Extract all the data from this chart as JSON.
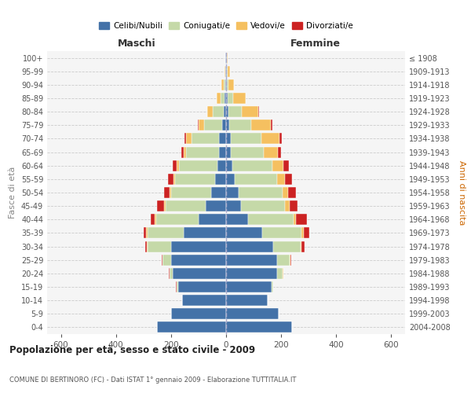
{
  "age_groups": [
    "0-4",
    "5-9",
    "10-14",
    "15-19",
    "20-24",
    "25-29",
    "30-34",
    "35-39",
    "40-44",
    "45-49",
    "50-54",
    "55-59",
    "60-64",
    "65-69",
    "70-74",
    "75-79",
    "80-84",
    "85-89",
    "90-94",
    "95-99",
    "100+"
  ],
  "birth_years": [
    "2004-2008",
    "1999-2003",
    "1994-1998",
    "1989-1993",
    "1984-1988",
    "1979-1983",
    "1974-1978",
    "1969-1973",
    "1964-1968",
    "1959-1963",
    "1954-1958",
    "1949-1953",
    "1944-1948",
    "1939-1943",
    "1934-1938",
    "1929-1933",
    "1924-1928",
    "1919-1923",
    "1914-1918",
    "1909-1913",
    "≤ 1908"
  ],
  "colors": {
    "celibi": "#4472a8",
    "coniugati": "#c5d9a8",
    "vedovi": "#f5c060",
    "divorziati": "#cc2222"
  },
  "males": {
    "celibi": [
      250,
      200,
      160,
      175,
      195,
      200,
      200,
      155,
      100,
      75,
      55,
      40,
      30,
      25,
      25,
      15,
      8,
      5,
      3,
      2,
      2
    ],
    "coniugati": [
      0,
      0,
      0,
      5,
      10,
      30,
      85,
      130,
      155,
      145,
      145,
      145,
      140,
      120,
      100,
      65,
      40,
      15,
      5,
      2,
      0
    ],
    "vedovi": [
      0,
      0,
      0,
      1,
      1,
      2,
      3,
      5,
      5,
      5,
      5,
      5,
      10,
      10,
      20,
      20,
      20,
      15,
      8,
      3,
      2
    ],
    "divorziati": [
      0,
      0,
      0,
      1,
      2,
      2,
      5,
      10,
      15,
      25,
      20,
      20,
      15,
      8,
      5,
      2,
      0,
      0,
      0,
      0,
      0
    ]
  },
  "females": {
    "celibi": [
      240,
      190,
      150,
      165,
      185,
      185,
      170,
      130,
      80,
      55,
      45,
      30,
      22,
      18,
      18,
      12,
      8,
      5,
      4,
      3,
      2
    ],
    "coniugati": [
      0,
      0,
      0,
      5,
      20,
      45,
      100,
      145,
      165,
      160,
      160,
      155,
      145,
      120,
      110,
      80,
      50,
      20,
      5,
      2,
      0
    ],
    "vedovi": [
      0,
      0,
      0,
      1,
      2,
      3,
      5,
      8,
      10,
      15,
      20,
      30,
      40,
      50,
      65,
      70,
      60,
      45,
      20,
      8,
      5
    ],
    "divorziati": [
      0,
      0,
      0,
      1,
      2,
      3,
      10,
      20,
      40,
      30,
      30,
      25,
      20,
      12,
      8,
      5,
      2,
      0,
      0,
      0,
      0
    ]
  },
  "xlim": 650,
  "title": "Popolazione per età, sesso e stato civile - 2009",
  "subtitle": "COMUNE DI BERTINORO (FC) - Dati ISTAT 1° gennaio 2009 - Elaborazione TUTTITALIA.IT",
  "ylabel_left": "Fasce di età",
  "ylabel_right": "Anni di nascita",
  "xlabel_left": "Maschi",
  "xlabel_right": "Femmine",
  "legend_labels": [
    "Celibi/Nubili",
    "Coniugati/e",
    "Vedovi/e",
    "Divorziati/e"
  ],
  "bg_color": "#f5f5f5",
  "grid_color": "#cccccc"
}
